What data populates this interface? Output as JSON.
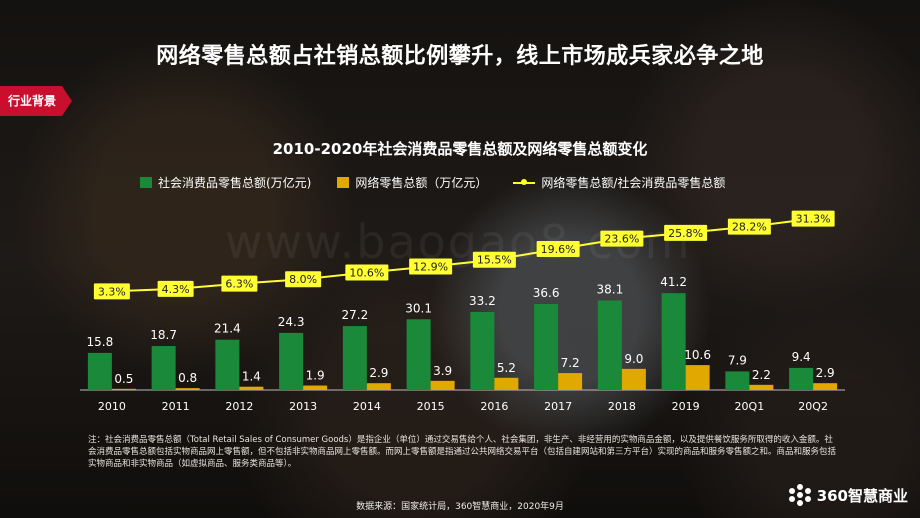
{
  "header": {
    "title": "网络零售总额占社销总额比例攀升，线上市场成兵家必争之地",
    "tag": "行业背景"
  },
  "watermark": "www.baogao8.com",
  "colors": {
    "green": "#1a8a3a",
    "orange": "#e0a800",
    "line": "#ffff33",
    "tag": "#c8102e"
  },
  "chart_data": {
    "type": "bar",
    "title": "2010-2020年社会消费品零售总额及网络零售总额变化",
    "categories": [
      "2010",
      "2011",
      "2012",
      "2013",
      "2014",
      "2015",
      "2016",
      "2017",
      "2018",
      "2019",
      "20Q1",
      "20Q2"
    ],
    "series": [
      {
        "name": "社会消费品零售总额(万亿元)",
        "type": "bar",
        "values": [
          15.8,
          18.7,
          21.4,
          24.3,
          27.2,
          30.1,
          33.2,
          36.6,
          38.1,
          41.2,
          7.9,
          9.4
        ],
        "labels": [
          "15.8",
          "18.7",
          "21.4",
          "24.3",
          "27.2",
          "30.1",
          "33.2",
          "36.6",
          "38.1",
          "41.2",
          "7.9",
          "9.4"
        ]
      },
      {
        "name": "网络零售总额（万亿元）",
        "type": "bar",
        "values": [
          0.5,
          0.8,
          1.4,
          1.9,
          2.9,
          3.9,
          5.2,
          7.2,
          9.0,
          10.6,
          2.2,
          2.9
        ],
        "labels": [
          "0.5",
          "0.8",
          "1.4",
          "1.9",
          "2.9",
          "3.9",
          "5.2",
          "7.2",
          "9.0",
          "10.6",
          "2.2",
          "2.9"
        ]
      },
      {
        "name": "网络零售总额/社会消费品零售总额",
        "type": "line",
        "values": [
          3.3,
          4.3,
          6.3,
          8.0,
          10.6,
          12.9,
          15.5,
          19.6,
          23.6,
          25.8,
          28.2,
          31.3
        ],
        "labels": [
          "3.3%",
          "4.3%",
          "6.3%",
          "8.0%",
          "10.6%",
          "12.9%",
          "15.5%",
          "19.6%",
          "23.6%",
          "25.8%",
          "28.2%",
          "31.3%"
        ]
      }
    ],
    "legend": "top",
    "grid": false
  },
  "footer": {
    "note": "注：社会消费品零售总额（Total Retail Sales of Consumer Goods）是指企业（单位）通过交易售给个人、社会集团，非生产、非经营用的实物商品金额，以及提供餐饮服务所取得的收入金额。社会消费品零售总额包括实物商品网上零售额，但不包括非实物商品网上零售额。而网上零售额是指通过公共网络交易平台（包括自建网站和第三方平台）实现的商品和服务零售额之和。商品和服务包括实物商品和非实物商品（如虚拟商品、服务类商品等）。",
    "source": "数据来源：国家统计局，360智慧商业，2020年9月",
    "logo_text": "360智慧商业"
  }
}
